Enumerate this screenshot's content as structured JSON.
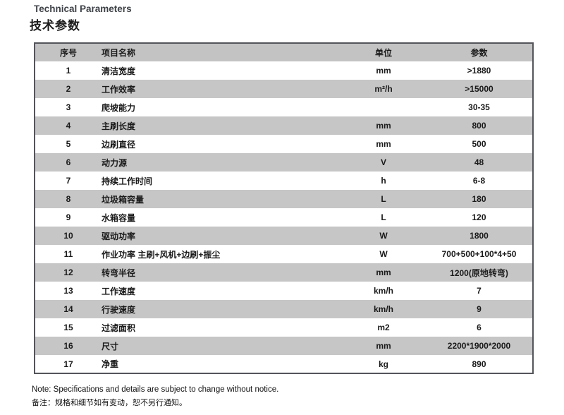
{
  "page": {
    "title_en": "Technical Parameters",
    "title_zh": "技术参数",
    "note_en": "Note: Specifications and details are subject to change without notice.",
    "note_zh": "备注：规格和细节如有变动，恕不另行通知。"
  },
  "table": {
    "headers": {
      "index": "序号",
      "name": "项目名称",
      "unit": "单位",
      "value": "参数"
    },
    "rows": [
      {
        "index": "1",
        "name": "清洁宽度",
        "unit": "mm",
        "value": ">1880"
      },
      {
        "index": "2",
        "name": "工作效率",
        "unit": "m²/h",
        "value": ">15000"
      },
      {
        "index": "3",
        "name": "爬坡能力",
        "unit": "",
        "value": "30-35"
      },
      {
        "index": "4",
        "name": "主刷长度",
        "unit": "mm",
        "value": "800"
      },
      {
        "index": "5",
        "name": "边刷直径",
        "unit": "mm",
        "value": "500"
      },
      {
        "index": "6",
        "name": "动力源",
        "unit": "V",
        "value": "48"
      },
      {
        "index": "7",
        "name": "持续工作时间",
        "unit": "h",
        "value": "6-8"
      },
      {
        "index": "8",
        "name": "垃圾箱容量",
        "unit": "L",
        "value": "180"
      },
      {
        "index": "9",
        "name": "水箱容量",
        "unit": "L",
        "value": "120"
      },
      {
        "index": "10",
        "name": "驱动功率",
        "unit": "W",
        "value": "1800"
      },
      {
        "index": "11",
        "name": "作业功率 主刷+风机+边刷+振尘",
        "unit": "W",
        "value": "700+500+100*4+50"
      },
      {
        "index": "12",
        "name": "转弯半径",
        "unit": "mm",
        "value": "1200(原地转弯)"
      },
      {
        "index": "13",
        "name": "工作速度",
        "unit": "km/h",
        "value": "7"
      },
      {
        "index": "14",
        "name": "行驶速度",
        "unit": "km/h",
        "value": "9"
      },
      {
        "index": "15",
        "name": "过滤面积",
        "unit": "m2",
        "value": "6"
      },
      {
        "index": "16",
        "name": "尺寸",
        "unit": "mm",
        "value": "2200*1900*2000"
      },
      {
        "index": "17",
        "name": "净重",
        "unit": "kg",
        "value": "890"
      }
    ],
    "colors": {
      "header_bg": "#c3c3c3",
      "row_alt_bg": "#c6c6c6",
      "border": "#54555a",
      "title_en_color": "#3e4247"
    }
  }
}
